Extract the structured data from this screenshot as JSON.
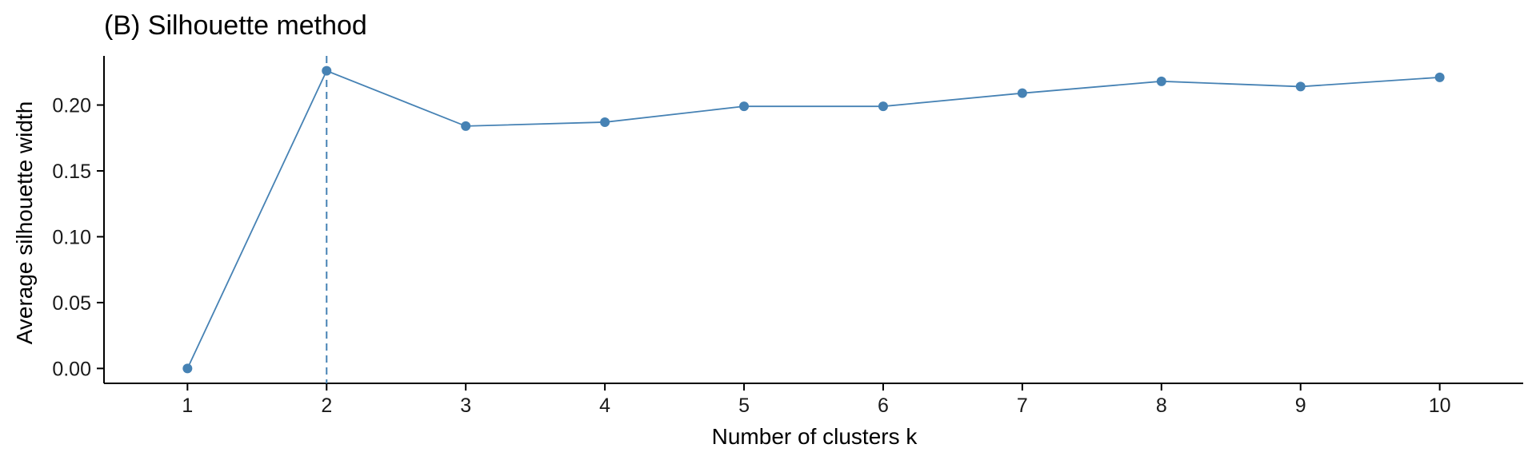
{
  "chart_data": {
    "type": "line",
    "title": "(B) Silhouette method",
    "xlabel": "Number of clusters k",
    "ylabel": "Average silhouette width",
    "x": [
      1,
      2,
      3,
      4,
      5,
      6,
      7,
      8,
      9,
      10
    ],
    "y": [
      0.0,
      0.226,
      0.184,
      0.187,
      0.199,
      0.199,
      0.209,
      0.218,
      0.214,
      0.221
    ],
    "x_ticks": [
      "1",
      "2",
      "3",
      "4",
      "5",
      "6",
      "7",
      "8",
      "9",
      "10"
    ],
    "y_ticks": [
      "0.00",
      "0.05",
      "0.10",
      "0.15",
      "0.20"
    ],
    "y_tick_values": [
      0.0,
      0.05,
      0.1,
      0.15,
      0.2
    ],
    "xlim": [
      0.4,
      10.6
    ],
    "ylim": [
      -0.0113,
      0.2373
    ],
    "optimal_k": 2,
    "grid": false,
    "colors": {
      "series": "#4682B4",
      "axis": "#000000"
    }
  }
}
